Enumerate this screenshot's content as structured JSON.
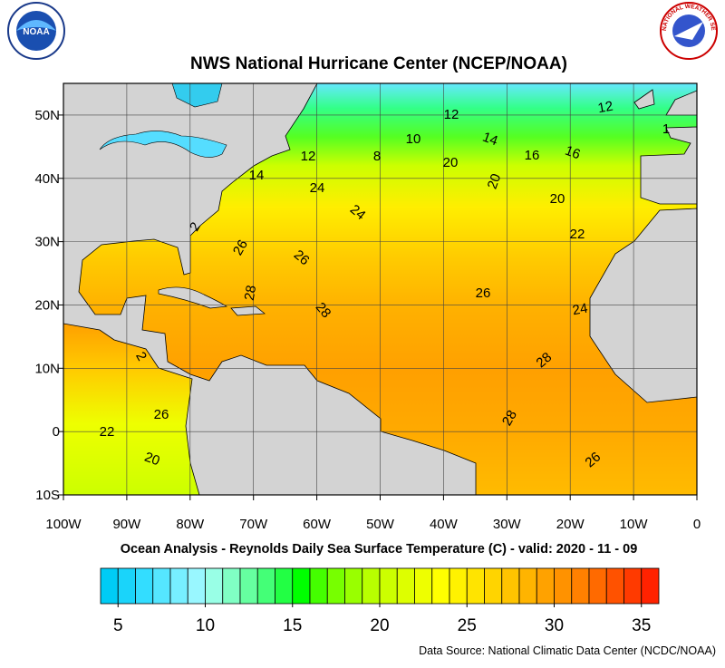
{
  "logos": {
    "left": "NOAA",
    "right": "NATIONAL WEATHER SERVICE"
  },
  "map": {
    "title": "NWS National Hurricane Center (NCEP/NOAA)",
    "subtitle": "Ocean Analysis - Reynolds Daily Sea Surface Temperature (C) - valid: 2020 - 11 - 09",
    "source": "Data Source: National Climatic Data Center (NCDC/NOAA)",
    "xlim": [
      -100,
      0
    ],
    "ylim": [
      -10,
      55
    ],
    "xticks": [
      {
        "value": -100,
        "label": "100W"
      },
      {
        "value": -90,
        "label": "90W"
      },
      {
        "value": -80,
        "label": "80W"
      },
      {
        "value": -70,
        "label": "70W"
      },
      {
        "value": -60,
        "label": "60W"
      },
      {
        "value": -50,
        "label": "50W"
      },
      {
        "value": -40,
        "label": "40W"
      },
      {
        "value": -30,
        "label": "30W"
      },
      {
        "value": -20,
        "label": "20W"
      },
      {
        "value": -10,
        "label": "10W"
      },
      0
    ],
    "yticks": [
      {
        "value": 50,
        "label": "50N"
      },
      {
        "value": 40,
        "label": "40N"
      },
      {
        "value": 30,
        "label": "30N"
      },
      {
        "value": 20,
        "label": "20N"
      },
      {
        "value": 10,
        "label": "10N"
      },
      0,
      {
        "value": -10,
        "label": "10S"
      }
    ],
    "contour_labels": [
      12,
      12,
      1,
      10,
      14,
      16,
      16,
      12,
      8,
      20,
      20,
      14,
      24,
      20,
      24,
      2,
      22,
      26,
      26,
      28,
      26,
      28,
      24,
      2,
      28,
      26,
      28,
      22,
      20,
      26
    ]
  },
  "colorbar": {
    "range": [
      4,
      36
    ],
    "ticks": [
      5,
      10,
      15,
      20,
      25,
      30,
      35
    ],
    "colors": [
      "#00ccf5",
      "#1ad4fa",
      "#33ddff",
      "#55e6ff",
      "#77efff",
      "#99f7ff",
      "#99ffe6",
      "#80ffc4",
      "#66ffa0",
      "#44ff77",
      "#22ff44",
      "#00ff00",
      "#44ff00",
      "#77ff00",
      "#99ff00",
      "#b8ff00",
      "#ccff00",
      "#ddff00",
      "#eeff00",
      "#ffff00",
      "#fff200",
      "#ffe400",
      "#ffd400",
      "#ffc400",
      "#ffb400",
      "#ffa200",
      "#ff9200",
      "#ff8000",
      "#ff6a00",
      "#ff5200",
      "#ff3a00",
      "#ff2200"
    ]
  }
}
